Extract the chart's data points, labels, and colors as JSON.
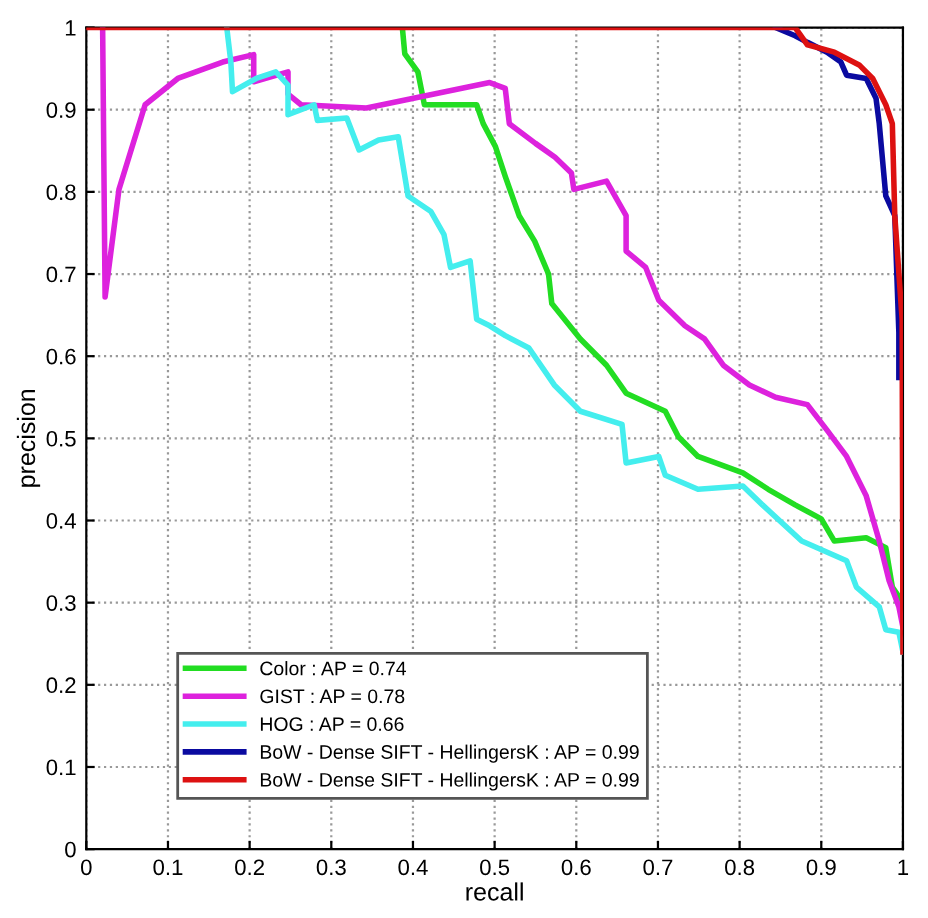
{
  "chart_data": {
    "type": "line",
    "xlabel": "recall",
    "ylabel": "precision",
    "xlim": [
      0,
      1
    ],
    "ylim": [
      0,
      1
    ],
    "xticks": [
      0,
      0.1,
      0.2,
      0.3,
      0.4,
      0.5,
      0.6,
      0.7,
      0.8,
      0.9,
      1
    ],
    "yticks": [
      0,
      0.1,
      0.2,
      0.3,
      0.4,
      0.5,
      0.6,
      0.7,
      0.8,
      0.9,
      1
    ],
    "grid": true,
    "line_style": "solid",
    "marker": "none",
    "legend": "bottom left",
    "series": [
      {
        "name": "Color : AP = 0.74",
        "color": "#22dd22",
        "x": [
          0.387,
          0.39,
          0.406,
          0.414,
          0.478,
          0.486,
          0.501,
          0.513,
          0.53,
          0.549,
          0.566,
          0.57,
          0.605,
          0.637,
          0.661,
          0.709,
          0.725,
          0.749,
          0.804,
          0.835,
          0.868,
          0.9,
          0.916,
          0.955,
          0.979,
          0.987,
          1.0
        ],
        "values": [
          1.0,
          0.968,
          0.946,
          0.906,
          0.906,
          0.883,
          0.855,
          0.819,
          0.771,
          0.74,
          0.7,
          0.664,
          0.621,
          0.589,
          0.555,
          0.533,
          0.502,
          0.478,
          0.458,
          0.438,
          0.419,
          0.402,
          0.375,
          0.379,
          0.367,
          0.319,
          0.3
        ]
      },
      {
        "name": "GIST : AP = 0.78",
        "color": "#dd22dd",
        "x": [
          0.02,
          0.023,
          0.04,
          0.072,
          0.112,
          0.167,
          0.205,
          0.205,
          0.247,
          0.247,
          0.263,
          0.343,
          0.494,
          0.513,
          0.518,
          0.55,
          0.574,
          0.594,
          0.597,
          0.637,
          0.661,
          0.661,
          0.685,
          0.701,
          0.733,
          0.757,
          0.78,
          0.812,
          0.844,
          0.883,
          0.907,
          0.931,
          0.955,
          0.971,
          0.983,
          0.995,
          1.0
        ],
        "values": [
          1.0,
          0.672,
          0.803,
          0.906,
          0.938,
          0.958,
          0.967,
          0.934,
          0.946,
          0.919,
          0.906,
          0.902,
          0.933,
          0.926,
          0.883,
          0.859,
          0.842,
          0.823,
          0.803,
          0.813,
          0.771,
          0.728,
          0.708,
          0.668,
          0.637,
          0.621,
          0.589,
          0.565,
          0.55,
          0.541,
          0.51,
          0.478,
          0.43,
          0.375,
          0.327,
          0.295,
          0.27
        ]
      },
      {
        "name": "HOG : AP = 0.66",
        "color": "#44eeee",
        "x": [
          0.172,
          0.177,
          0.179,
          0.208,
          0.232,
          0.247,
          0.247,
          0.279,
          0.283,
          0.319,
          0.334,
          0.358,
          0.382,
          0.394,
          0.422,
          0.438,
          0.446,
          0.47,
          0.478,
          0.494,
          0.513,
          0.542,
          0.573,
          0.605,
          0.656,
          0.661,
          0.701,
          0.709,
          0.749,
          0.804,
          0.828,
          0.876,
          0.931,
          0.943,
          0.971,
          0.979,
          0.995,
          1.0
        ],
        "values": [
          1.0,
          0.958,
          0.922,
          0.938,
          0.946,
          0.93,
          0.894,
          0.906,
          0.887,
          0.89,
          0.851,
          0.863,
          0.867,
          0.795,
          0.776,
          0.748,
          0.708,
          0.716,
          0.645,
          0.637,
          0.625,
          0.61,
          0.565,
          0.533,
          0.517,
          0.47,
          0.478,
          0.455,
          0.438,
          0.442,
          0.419,
          0.375,
          0.351,
          0.319,
          0.295,
          0.267,
          0.264,
          0.24
        ]
      },
      {
        "name": "BoW - Dense SIFT - HellingersK : AP = 0.99",
        "color": "#0a0aa0",
        "x": [
          0.844,
          0.868,
          0.883,
          0.907,
          0.924,
          0.931,
          0.955,
          0.967,
          0.971,
          0.979,
          0.99,
          0.995,
          0.995
        ],
        "values": [
          1.0,
          0.99,
          0.982,
          0.97,
          0.958,
          0.942,
          0.938,
          0.914,
          0.883,
          0.795,
          0.771,
          0.629,
          0.574
        ]
      },
      {
        "name": "BoW - Dense SIFT - HellingersK : AP = 0.99",
        "color": "#dd1111",
        "x": [
          0.0,
          0.868,
          0.883,
          0.916,
          0.947,
          0.963,
          0.979,
          0.987,
          0.99,
          0.999,
          1.0
        ],
        "values": [
          1.0,
          1.0,
          0.979,
          0.97,
          0.954,
          0.938,
          0.906,
          0.883,
          0.771,
          0.645,
          0.24
        ]
      }
    ]
  }
}
